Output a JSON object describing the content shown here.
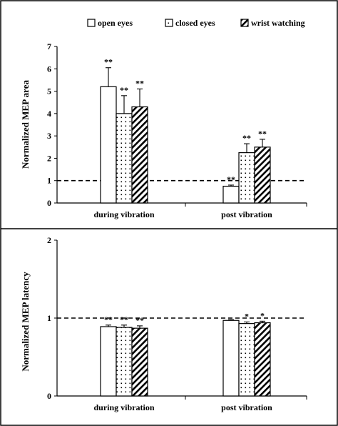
{
  "legend": {
    "items": [
      {
        "label": "open eyes",
        "pattern": "open"
      },
      {
        "label": "closed eyes",
        "pattern": "dots"
      },
      {
        "label": "wrist watching",
        "pattern": "hatch"
      }
    ]
  },
  "colors": {
    "ink": "#000000",
    "background": "#ffffff"
  },
  "chart_data": [
    {
      "type": "bar",
      "ylabel": "Normalized  MEP  area",
      "categories": [
        "during vibration",
        "post vibration"
      ],
      "ylim": [
        0,
        7
      ],
      "yticks": [
        0,
        1,
        2,
        3,
        4,
        5,
        6,
        7
      ],
      "reference_line": 1,
      "series": [
        {
          "name": "open eyes",
          "values": [
            5.2,
            0.75
          ],
          "errors": [
            0.85,
            0.05
          ],
          "significance": [
            "**",
            "**"
          ]
        },
        {
          "name": "closed eyes",
          "values": [
            4.0,
            2.25
          ],
          "errors": [
            0.8,
            0.4
          ],
          "significance": [
            "**",
            "**"
          ]
        },
        {
          "name": "wrist watching",
          "values": [
            4.3,
            2.5
          ],
          "errors": [
            0.8,
            0.35
          ],
          "significance": [
            "**",
            "**"
          ]
        }
      ]
    },
    {
      "type": "bar",
      "ylabel": "Normalized  MEP  latency",
      "categories": [
        "during vibration",
        "post vibration"
      ],
      "ylim": [
        0,
        2
      ],
      "yticks": [
        0,
        1,
        2
      ],
      "reference_line": 1,
      "series": [
        {
          "name": "open eyes",
          "values": [
            0.89,
            0.97
          ],
          "errors": [
            0.02,
            0.01
          ],
          "significance": [
            "**",
            ""
          ]
        },
        {
          "name": "closed eyes",
          "values": [
            0.88,
            0.93
          ],
          "errors": [
            0.03,
            0.02
          ],
          "significance": [
            "**",
            "*"
          ]
        },
        {
          "name": "wrist watching",
          "values": [
            0.87,
            0.94
          ],
          "errors": [
            0.03,
            0.02
          ],
          "significance": [
            "**",
            "*"
          ]
        }
      ]
    }
  ]
}
